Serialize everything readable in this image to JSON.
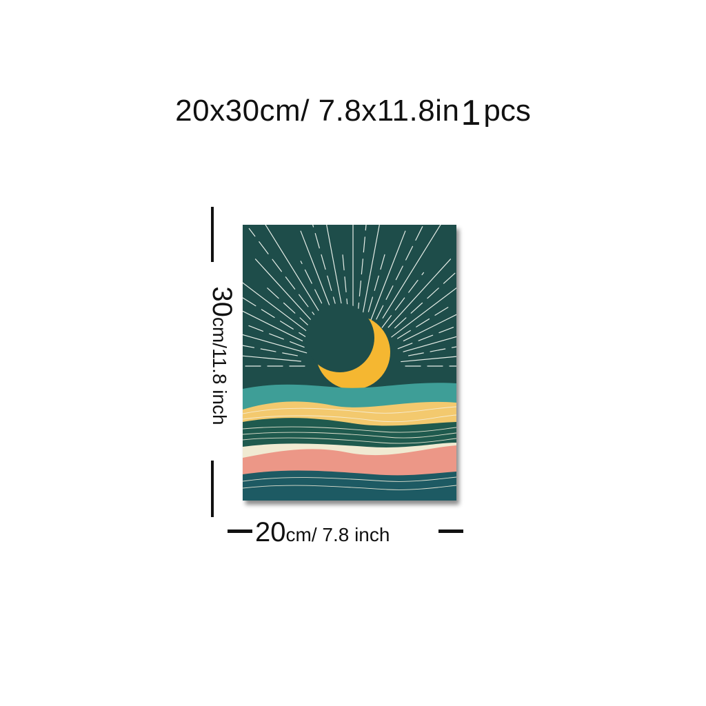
{
  "title": {
    "size_text": "20x30cm/ 7.8x11.8in",
    "qty_number": "1",
    "qty_unit": "pcs"
  },
  "height_label": {
    "number": "30",
    "unit_text": "cm/11.8 inch"
  },
  "width_label": {
    "number": "20",
    "unit_text": "cm/ 7.8 inch"
  },
  "artwork": {
    "subject": "crescent moon over wavy landscape",
    "colors": {
      "sky": "#1e4d4a",
      "moon": "#f5b731",
      "rays": "#e8efe9",
      "teal_hill": "#3e9e97",
      "yellow_band": "#f3c96e",
      "dark_green_band": "#1f5a4e",
      "cream_band": "#f0ead2",
      "pink_band": "#ec9787",
      "bottom_teal": "#1d5a63"
    }
  }
}
